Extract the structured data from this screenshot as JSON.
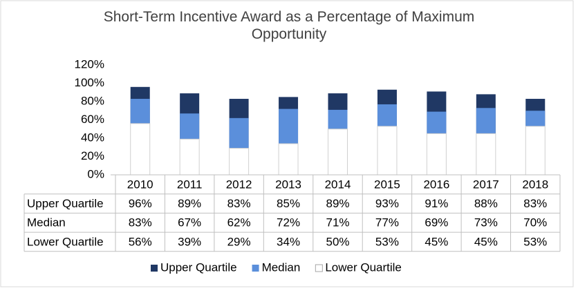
{
  "chart_data": {
    "type": "bar",
    "title": "Short-Term Incentive Award as a Percentage of Maximum Opportunity",
    "categories": [
      "2010",
      "2011",
      "2012",
      "2013",
      "2014",
      "2015",
      "2016",
      "2017",
      "2018"
    ],
    "series": [
      {
        "name": "Upper Quartile",
        "color": "#203864",
        "values": [
          96,
          89,
          83,
          85,
          89,
          93,
          91,
          88,
          83
        ],
        "value_labels": [
          "96%",
          "89%",
          "83%",
          "85%",
          "89%",
          "93%",
          "91%",
          "88%",
          "83%"
        ]
      },
      {
        "name": "Median",
        "color": "#5b8fdb",
        "values": [
          83,
          67,
          62,
          72,
          71,
          77,
          69,
          73,
          70
        ],
        "value_labels": [
          "83%",
          "67%",
          "62%",
          "72%",
          "71%",
          "77%",
          "69%",
          "73%",
          "70%"
        ]
      },
      {
        "name": "Lower Quartile",
        "color": "#ffffff",
        "values": [
          56,
          39,
          29,
          34,
          50,
          53,
          45,
          45,
          53
        ],
        "value_labels": [
          "56%",
          "39%",
          "29%",
          "34%",
          "50%",
          "53%",
          "45%",
          "45%",
          "53%"
        ]
      }
    ],
    "ylim": [
      0,
      120
    ],
    "yticks": [
      {
        "value": 0,
        "label": "0%"
      },
      {
        "value": 20,
        "label": "20%"
      },
      {
        "value": 40,
        "label": "40%"
      },
      {
        "value": 60,
        "label": "60%"
      },
      {
        "value": 80,
        "label": "80%"
      },
      {
        "value": 100,
        "label": "100%"
      },
      {
        "value": 120,
        "label": "120%"
      }
    ],
    "grid": false,
    "legend": "bottom"
  }
}
